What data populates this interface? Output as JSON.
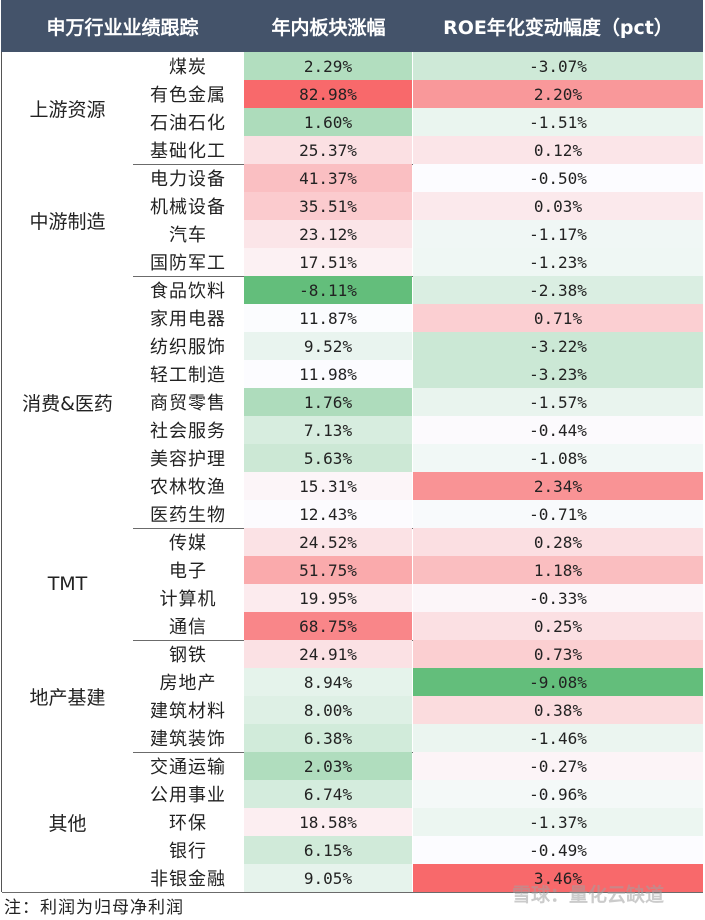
{
  "chart_data": {
    "type": "table",
    "columns": [
      "申万行业业绩跟踪",
      "年内板块涨幅",
      "ROE年化变动幅度（pct）"
    ],
    "groups": [
      {
        "name": "上游资源",
        "rows": [
          {
            "industry": "煤炭",
            "gain": "2.29%",
            "roe": "-3.07%"
          },
          {
            "industry": "有色金属",
            "gain": "82.98%",
            "roe": "2.20%"
          },
          {
            "industry": "石油石化",
            "gain": "1.60%",
            "roe": "-1.51%"
          },
          {
            "industry": "基础化工",
            "gain": "25.37%",
            "roe": "0.12%"
          }
        ]
      },
      {
        "name": "中游制造",
        "rows": [
          {
            "industry": "电力设备",
            "gain": "41.37%",
            "roe": "-0.50%"
          },
          {
            "industry": "机械设备",
            "gain": "35.51%",
            "roe": "0.03%"
          },
          {
            "industry": "汽车",
            "gain": "23.12%",
            "roe": "-1.17%"
          },
          {
            "industry": "国防军工",
            "gain": "17.51%",
            "roe": "-1.23%"
          }
        ]
      },
      {
        "name": "消费&医药",
        "rows": [
          {
            "industry": "食品饮料",
            "gain": "-8.11%",
            "roe": "-2.38%"
          },
          {
            "industry": "家用电器",
            "gain": "11.87%",
            "roe": "0.71%"
          },
          {
            "industry": "纺织服饰",
            "gain": "9.52%",
            "roe": "-3.22%"
          },
          {
            "industry": "轻工制造",
            "gain": "11.98%",
            "roe": "-3.23%"
          },
          {
            "industry": "商贸零售",
            "gain": "1.76%",
            "roe": "-1.57%"
          },
          {
            "industry": "社会服务",
            "gain": "7.13%",
            "roe": "-0.44%"
          },
          {
            "industry": "美容护理",
            "gain": "5.63%",
            "roe": "-1.08%"
          },
          {
            "industry": "农林牧渔",
            "gain": "15.31%",
            "roe": "2.34%"
          },
          {
            "industry": "医药生物",
            "gain": "12.43%",
            "roe": "-0.71%"
          }
        ]
      },
      {
        "name": "TMT",
        "rows": [
          {
            "industry": "传媒",
            "gain": "24.52%",
            "roe": "0.28%"
          },
          {
            "industry": "电子",
            "gain": "51.75%",
            "roe": "1.18%"
          },
          {
            "industry": "计算机",
            "gain": "19.95%",
            "roe": "-0.33%"
          },
          {
            "industry": "通信",
            "gain": "68.75%",
            "roe": "0.25%"
          }
        ]
      },
      {
        "name": "地产基建",
        "rows": [
          {
            "industry": "钢铁",
            "gain": "24.91%",
            "roe": "0.73%"
          },
          {
            "industry": "房地产",
            "gain": "8.94%",
            "roe": "-9.08%"
          },
          {
            "industry": "建筑材料",
            "gain": "8.00%",
            "roe": "0.38%"
          },
          {
            "industry": "建筑装饰",
            "gain": "6.38%",
            "roe": "-1.46%"
          }
        ]
      },
      {
        "name": "其他",
        "rows": [
          {
            "industry": "交通运输",
            "gain": "2.03%",
            "roe": "-0.27%"
          },
          {
            "industry": "公用事业",
            "gain": "6.74%",
            "roe": "-0.96%"
          },
          {
            "industry": "环保",
            "gain": "18.58%",
            "roe": "-1.37%"
          },
          {
            "industry": "银行",
            "gain": "6.15%",
            "roe": "-0.49%"
          },
          {
            "industry": "非银金融",
            "gain": "9.05%",
            "roe": "3.46%"
          }
        ]
      }
    ]
  },
  "note": "注：利润为归母净利润",
  "watermark": "雪球：量化云缺道",
  "colors": {
    "header_bg": "#44536a",
    "header_text": "#ffffff",
    "scale_low": "#63be7b",
    "scale_mid": "#fcfcff",
    "scale_high": "#f8696b"
  }
}
